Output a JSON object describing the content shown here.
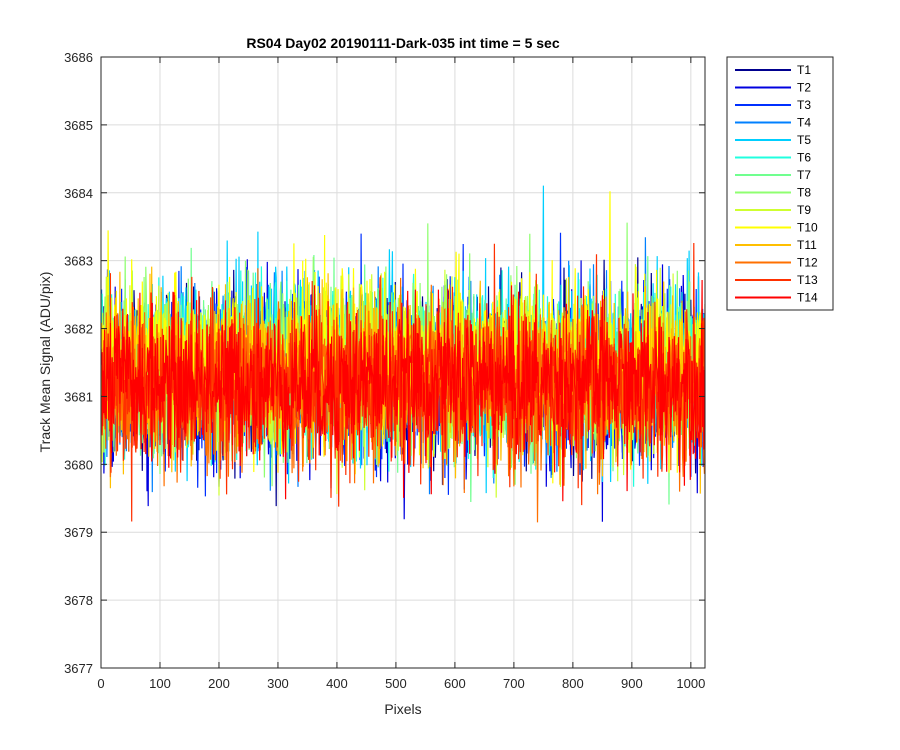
{
  "chart_data": {
    "type": "line",
    "title": "RS04 Day02 20190111-Dark-035 int time = 5 sec",
    "xlabel": "Pixels",
    "ylabel": "Track Mean Signal (ADU/pix)",
    "xlim": [
      0,
      1024
    ],
    "ylim": [
      3677,
      3686
    ],
    "xticks": [
      0,
      100,
      200,
      300,
      400,
      500,
      600,
      700,
      800,
      900,
      1000
    ],
    "yticks": [
      3677,
      3678,
      3679,
      3680,
      3681,
      3682,
      3683,
      3684,
      3685,
      3686
    ],
    "grid": true,
    "legend_position": "outside-top-right",
    "x_points": 1024,
    "series": [
      {
        "name": "T1",
        "color": "#00008F",
        "mean": 3681.3,
        "spread": 0.95
      },
      {
        "name": "T2",
        "color": "#0000DF",
        "mean": 3681.25,
        "spread": 1.0
      },
      {
        "name": "T3",
        "color": "#0030FF",
        "mean": 3681.3,
        "spread": 0.95
      },
      {
        "name": "T4",
        "color": "#0080FF",
        "mean": 3681.4,
        "spread": 0.95
      },
      {
        "name": "T5",
        "color": "#00CFFF",
        "mean": 3681.45,
        "spread": 1.0
      },
      {
        "name": "T6",
        "color": "#20FFDF",
        "mean": 3681.4,
        "spread": 0.95
      },
      {
        "name": "T7",
        "color": "#70FF8F",
        "mean": 3681.4,
        "spread": 0.95
      },
      {
        "name": "T8",
        "color": "#8FFF70",
        "mean": 3681.45,
        "spread": 0.95
      },
      {
        "name": "T9",
        "color": "#CFFF30",
        "mean": 3681.35,
        "spread": 0.95
      },
      {
        "name": "T10",
        "color": "#FFFF00",
        "mean": 3681.5,
        "spread": 0.95
      },
      {
        "name": "T11",
        "color": "#FFBF00",
        "mean": 3681.3,
        "spread": 0.95
      },
      {
        "name": "T12",
        "color": "#FF7000",
        "mean": 3681.1,
        "spread": 0.95
      },
      {
        "name": "T13",
        "color": "#FF3000",
        "mean": 3681.15,
        "spread": 0.95
      },
      {
        "name": "T14",
        "color": "#FF0000",
        "mean": 3681.2,
        "spread": 0.9
      }
    ]
  }
}
